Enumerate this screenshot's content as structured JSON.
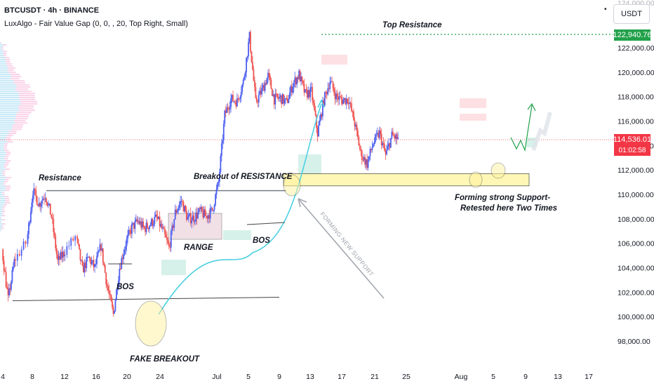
{
  "header": {
    "symbol_line": "BTCUSDT · 4h · BINANCE",
    "indicator_line": "LuxAlgo - Fair Value Gap (0, 0, , 20, Top Right, Small)",
    "currency_button": "USDT"
  },
  "colors": {
    "up": "#26a69a",
    "down": "#ef5350",
    "wick_up": "#4c5ff0",
    "resistance_line": "#787b86",
    "support_zone": "#fff59d",
    "top_res_line": "#22a14a",
    "last_price": "#f23645",
    "curve": "#4dd0e1",
    "fvg_bull": "#c8ece3",
    "fvg_bear": "#fcd6da"
  },
  "chart_data": {
    "type": "candlestick",
    "symbol": "BTCUSDT",
    "timeframe": "4h",
    "exchange": "BINANCE",
    "ylim": [
      97000,
      124500
    ],
    "y_ticks": [
      98000,
      100000,
      102000,
      104000,
      106000,
      108000,
      110000,
      112000,
      114000,
      116000,
      118000,
      120000,
      122000
    ],
    "y_tick_labels": [
      "98,000.00",
      "100,000.00",
      "102,000.00",
      "104,000.00",
      "106,000.00",
      "108,000.00",
      "110,000.00",
      "112,000.00",
      "114,000.00",
      "116,000.00",
      "118,000.00",
      "120,000.00",
      "122,000.00"
    ],
    "x_ticks": [
      "4",
      "8",
      "12",
      "16",
      "20",
      "24",
      "Jul",
      "5",
      "9",
      "13",
      "17",
      "21",
      "25",
      "Aug",
      "5",
      "9",
      "13",
      "17"
    ],
    "top_resistance_price": "122,940.76",
    "last_price": "114,536.01",
    "countdown": "01:02:58",
    "path": [
      {
        "d": "Jun 4",
        "v": 105500
      },
      {
        "d": "Jun 5",
        "v": 101400
      },
      {
        "d": "Jun 6",
        "v": 104500
      },
      {
        "d": "Jun 8",
        "v": 106000
      },
      {
        "d": "Jun 9",
        "v": 110300
      },
      {
        "d": "Jun 10",
        "v": 109200
      },
      {
        "d": "Jun 11",
        "v": 110000
      },
      {
        "d": "Jun 12",
        "v": 108200
      },
      {
        "d": "Jun 13",
        "v": 104500
      },
      {
        "d": "Jun 14",
        "v": 105200
      },
      {
        "d": "Jun 16",
        "v": 106500
      },
      {
        "d": "Jun 17",
        "v": 103800
      },
      {
        "d": "Jun 18",
        "v": 104800
      },
      {
        "d": "Jun 19",
        "v": 104000
      },
      {
        "d": "Jun 20",
        "v": 105800
      },
      {
        "d": "Jun 21",
        "v": 102500
      },
      {
        "d": "Jun 22",
        "v": 100200
      },
      {
        "d": "Jun 23",
        "v": 104000
      },
      {
        "d": "Jun 24",
        "v": 106000
      },
      {
        "d": "Jun 25",
        "v": 107300
      },
      {
        "d": "Jun 26",
        "v": 107800
      },
      {
        "d": "Jun 27",
        "v": 107200
      },
      {
        "d": "Jun 28",
        "v": 107600
      },
      {
        "d": "Jun 29",
        "v": 108100
      },
      {
        "d": "Jun 30",
        "v": 107000
      },
      {
        "d": "Jul 1",
        "v": 105600
      },
      {
        "d": "Jul 2",
        "v": 108500
      },
      {
        "d": "Jul 3",
        "v": 109500
      },
      {
        "d": "Jul 4",
        "v": 108000
      },
      {
        "d": "Jul 5",
        "v": 108100
      },
      {
        "d": "Jul 6",
        "v": 108600
      },
      {
        "d": "Jul 7",
        "v": 108200
      },
      {
        "d": "Jul 8",
        "v": 108700
      },
      {
        "d": "Jul 9",
        "v": 111000
      },
      {
        "d": "Jul 10",
        "v": 116500
      },
      {
        "d": "Jul 11",
        "v": 117800
      },
      {
        "d": "Jul 12",
        "v": 117600
      },
      {
        "d": "Jul 13",
        "v": 119200
      },
      {
        "d": "Jul 14",
        "v": 122900
      },
      {
        "d": "Jul 15",
        "v": 117500
      },
      {
        "d": "Jul 16",
        "v": 118500
      },
      {
        "d": "Jul 17",
        "v": 119700
      },
      {
        "d": "Jul 18",
        "v": 117800
      },
      {
        "d": "Jul 19",
        "v": 117900
      },
      {
        "d": "Jul 20",
        "v": 117500
      },
      {
        "d": "Jul 21",
        "v": 119000
      },
      {
        "d": "Jul 22",
        "v": 119800
      },
      {
        "d": "Jul 23",
        "v": 118200
      },
      {
        "d": "Jul 24",
        "v": 118400
      },
      {
        "d": "Jul 25",
        "v": 115000
      },
      {
        "d": "Jul 26",
        "v": 117700
      },
      {
        "d": "Jul 27",
        "v": 119300
      },
      {
        "d": "Jul 28",
        "v": 118000
      },
      {
        "d": "Jul 29",
        "v": 117700
      },
      {
        "d": "Jul 30",
        "v": 117800
      },
      {
        "d": "Jul 31",
        "v": 115800
      },
      {
        "d": "Aug 1",
        "v": 113300
      },
      {
        "d": "Aug 2",
        "v": 112500
      },
      {
        "d": "Aug 3",
        "v": 114200
      },
      {
        "d": "Aug 4",
        "v": 115000
      },
      {
        "d": "Aug 5",
        "v": 113200
      },
      {
        "d": "Aug 6",
        "v": 114800
      },
      {
        "d": "Aug 7",
        "v": 114536
      }
    ],
    "annotations": {
      "resistance": "Resistance",
      "breakout": "Breakout of RESISTANCE",
      "top_resistance": "Top Resistance",
      "range": "RANGE",
      "bos_left": "BOS",
      "bos_right": "BOS",
      "fake_breakout": "FAKE BREAKOUT",
      "new_support": "FORMING NEW SUPPORT",
      "support_line1": "Forming strong Support-",
      "support_line2": "Retested here Two Times"
    },
    "levels": {
      "resistance": 110300,
      "support_line": 101300,
      "support_zone": [
        110700,
        111700
      ]
    }
  }
}
